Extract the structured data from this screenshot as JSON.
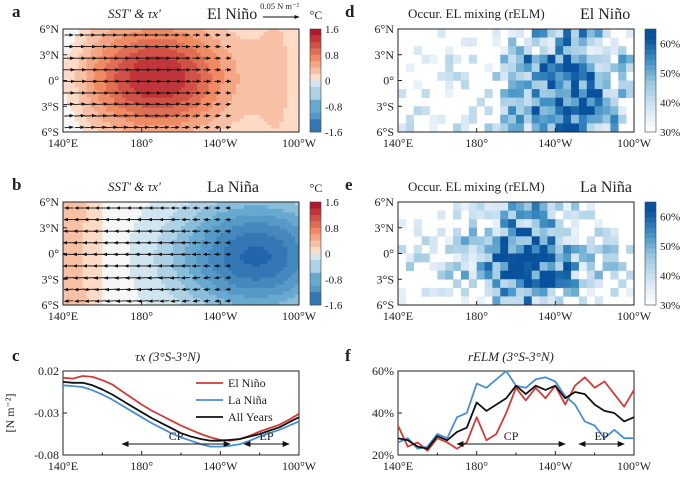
{
  "chart_data": [
    {
      "id": "a",
      "type": "heatmap",
      "label": "a",
      "title": "SST' & τx'",
      "subtitle": "El Niño",
      "scale_label": "0.05 N m⁻²",
      "cbar_unit": "°C",
      "cbar_ticks": [
        "1.6",
        "0.8",
        "0",
        "-0.8",
        "-1.6"
      ],
      "cbar_range": [
        -1.6,
        1.6
      ],
      "xticks": [
        "140°E",
        "180°",
        "140°W",
        "100°W"
      ],
      "yticks": [
        "6°N",
        "3°N",
        "0°",
        "3°S",
        "6°S"
      ],
      "x_range": [
        140,
        260
      ],
      "y_range": [
        -6,
        6
      ],
      "field": {
        "center_lon": 188,
        "center_lat": 0.3,
        "amp": 1.5,
        "lon_width": 38,
        "lat_width": 6.5,
        "offset": 0.0
      },
      "wind_dir": 1
    },
    {
      "id": "b",
      "type": "heatmap",
      "label": "b",
      "title": "SST' & τx'",
      "subtitle": "La Niña",
      "cbar_unit": "°C",
      "cbar_ticks": [
        "1.6",
        "0.8",
        "0",
        "-0.8",
        "-1.6"
      ],
      "cbar_range": [
        -1.6,
        1.6
      ],
      "xticks": [
        "140°E",
        "180°",
        "140°W",
        "100°W"
      ],
      "yticks": [
        "6°N",
        "3°N",
        "0°",
        "3°S",
        "6°S"
      ],
      "x_range": [
        140,
        260
      ],
      "y_range": [
        -6,
        6
      ],
      "field": {
        "center_lon": 238,
        "center_lat": -0.3,
        "amp": -1.55,
        "lon_width": 40,
        "lat_width": 6.5,
        "offset": 0.25
      },
      "wind_dir": -1
    },
    {
      "id": "d",
      "type": "heatmap",
      "label": "d",
      "title": "Occur. EL mixing (rELM)",
      "subtitle": "El Niño",
      "cbar_ticks": [
        "60%",
        "50%",
        "40%",
        "30%"
      ],
      "cbar_range": [
        30,
        65
      ],
      "xticks": [
        "140°E",
        "180°",
        "140°W",
        "100°W"
      ],
      "yticks": [
        "6°N",
        "3°N",
        "0°",
        "3°S",
        "6°S"
      ],
      "x_range": [
        140,
        260
      ],
      "y_range": [
        -6,
        6
      ],
      "seed": 7,
      "peak_lon": 225
    },
    {
      "id": "e",
      "type": "heatmap",
      "label": "e",
      "title": "Occur. EL mixing (rELM)",
      "subtitle": "La Niña",
      "cbar_ticks": [
        "60%",
        "50%",
        "40%",
        "30%"
      ],
      "cbar_range": [
        30,
        65
      ],
      "xticks": [
        "140°E",
        "180°",
        "140°W",
        "100°W"
      ],
      "yticks": [
        "6°N",
        "3°N",
        "0°",
        "3°S",
        "6°S"
      ],
      "x_range": [
        140,
        260
      ],
      "y_range": [
        -6,
        6
      ],
      "seed": 13,
      "peak_lon": 205
    },
    {
      "id": "c",
      "type": "line",
      "label": "c",
      "title": "τx (3°S-3°N)",
      "ylabel": "[N m⁻²]",
      "ylim": [
        -0.08,
        0.02
      ],
      "yticks": [
        "0.02",
        "-0.03",
        "-0.08"
      ],
      "xticks": [
        "140°E",
        "180°",
        "140°W",
        "100°W"
      ],
      "x": [
        140,
        145,
        150,
        155,
        160,
        165,
        170,
        175,
        180,
        185,
        190,
        195,
        200,
        205,
        210,
        215,
        220,
        225,
        230,
        235,
        240,
        245,
        250,
        255,
        260
      ],
      "series": [
        {
          "name": "El Niño",
          "color": "#cf3a3a",
          "values": [
            0.012,
            0.011,
            0.014,
            0.013,
            0.009,
            0.004,
            -0.004,
            -0.012,
            -0.02,
            -0.027,
            -0.033,
            -0.039,
            -0.045,
            -0.05,
            -0.055,
            -0.059,
            -0.062,
            -0.063,
            -0.061,
            -0.057,
            -0.052,
            -0.048,
            -0.044,
            -0.038,
            -0.031
          ]
        },
        {
          "name": "La Niña",
          "color": "#4a8ed0",
          "values": [
            0.003,
            0.002,
            0.001,
            -0.003,
            -0.008,
            -0.014,
            -0.021,
            -0.028,
            -0.035,
            -0.042,
            -0.048,
            -0.054,
            -0.059,
            -0.063,
            -0.067,
            -0.07,
            -0.07,
            -0.069,
            -0.067,
            -0.063,
            -0.058,
            -0.054,
            -0.05,
            -0.045,
            -0.04
          ]
        },
        {
          "name": "All Years",
          "color": "#111111",
          "values": [
            0.007,
            0.006,
            0.006,
            0.003,
            -0.002,
            -0.008,
            -0.015,
            -0.022,
            -0.029,
            -0.036,
            -0.042,
            -0.048,
            -0.054,
            -0.058,
            -0.061,
            -0.063,
            -0.063,
            -0.062,
            -0.061,
            -0.058,
            -0.055,
            -0.051,
            -0.047,
            -0.041,
            -0.035
          ]
        }
      ],
      "spans": [
        {
          "label": "CP",
          "from": 170,
          "to": 225
        },
        {
          "label": "EP",
          "from": 232,
          "to": 255
        }
      ]
    },
    {
      "id": "f",
      "type": "line",
      "label": "f",
      "title": "rELM (3°S-3°N)",
      "ylim": [
        20,
        60
      ],
      "yticks": [
        "60%",
        "40%",
        "20%"
      ],
      "xticks": [
        "140°E",
        "180°",
        "140°W",
        "100°W"
      ],
      "x": [
        140,
        145,
        150,
        155,
        160,
        165,
        170,
        175,
        180,
        185,
        190,
        195,
        200,
        205,
        210,
        215,
        220,
        225,
        230,
        235,
        240,
        245,
        250,
        255,
        260
      ],
      "series": [
        {
          "name": "El Niño",
          "color": "#cf3a3a",
          "values": [
            34,
            24,
            26,
            22,
            28,
            26,
            23,
            26,
            38,
            27,
            30,
            40,
            52,
            46,
            52,
            47,
            53,
            44,
            53,
            57,
            52,
            55,
            49,
            43,
            51
          ]
        },
        {
          "name": "La Niña",
          "color": "#4a8ed0",
          "values": [
            26,
            28,
            23,
            24,
            30,
            28,
            38,
            40,
            54,
            52,
            56,
            60,
            53,
            52,
            56,
            57,
            55,
            48,
            44,
            36,
            34,
            28,
            32,
            28,
            28
          ]
        },
        {
          "name": "All Years",
          "color": "#111111",
          "values": [
            28,
            27,
            24,
            23,
            29,
            27,
            31,
            33,
            45,
            41,
            44,
            47,
            53,
            49,
            53,
            51,
            53,
            47,
            50,
            49,
            44,
            41,
            40,
            36,
            38
          ]
        }
      ],
      "spans": [
        {
          "label": "CP",
          "from": 170,
          "to": 225
        },
        {
          "label": "EP",
          "from": 232,
          "to": 255
        }
      ]
    }
  ]
}
